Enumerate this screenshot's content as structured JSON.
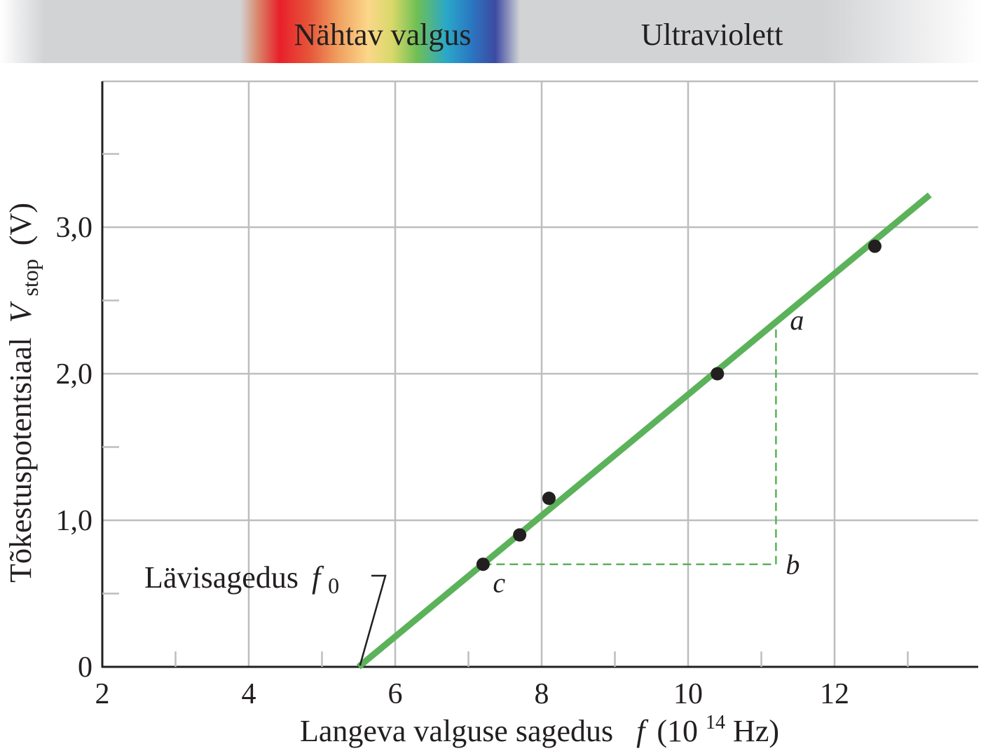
{
  "spectrum": {
    "visible_label": "Nähtav valgus",
    "uv_label": "Ultraviolett"
  },
  "chart_data": {
    "type": "scatter",
    "xlabel_main": "Langeva valguse sagedus",
    "xlabel_var": "f",
    "xlabel_unit_open": "(10",
    "xlabel_unit_exp": "14",
    "xlabel_unit_close": " Hz)",
    "ylabel_main": "Tõkestuspotentsiaal",
    "ylabel_var": "V",
    "ylabel_sub": "stop",
    "ylabel_unit": "(V)",
    "xlim": [
      2,
      14
    ],
    "ylim": [
      0,
      3.9
    ],
    "x_ticks": [
      2,
      4,
      6,
      8,
      10,
      12
    ],
    "x_tick_labels": [
      "2",
      "4",
      "6",
      "8",
      "10",
      "12"
    ],
    "y_ticks": [
      0,
      1,
      2,
      3
    ],
    "y_tick_labels": [
      "0",
      "1,0",
      "2,0",
      "3,0"
    ],
    "grid": true,
    "series": [
      {
        "points": [
          {
            "x": 7.2,
            "y": 0.7
          },
          {
            "x": 7.7,
            "y": 0.9
          },
          {
            "x": 8.1,
            "y": 1.15
          },
          {
            "x": 10.4,
            "y": 2.0
          },
          {
            "x": 12.55,
            "y": 2.87
          }
        ]
      }
    ],
    "fit_line": {
      "x": [
        5.5,
        13.3
      ],
      "y": [
        0.0,
        3.22
      ],
      "color": "#5bb25a"
    },
    "slope_triangle": {
      "c": [
        7.2,
        0.7
      ],
      "b": [
        11.2,
        0.7
      ],
      "a": [
        11.2,
        2.35
      ]
    },
    "annotations": {
      "threshold_label": "Lävisagedus",
      "threshold_var": "f",
      "threshold_sub": "0",
      "threshold_x": 5.5,
      "label_a": "a",
      "label_b": "b",
      "label_c": "c"
    }
  }
}
